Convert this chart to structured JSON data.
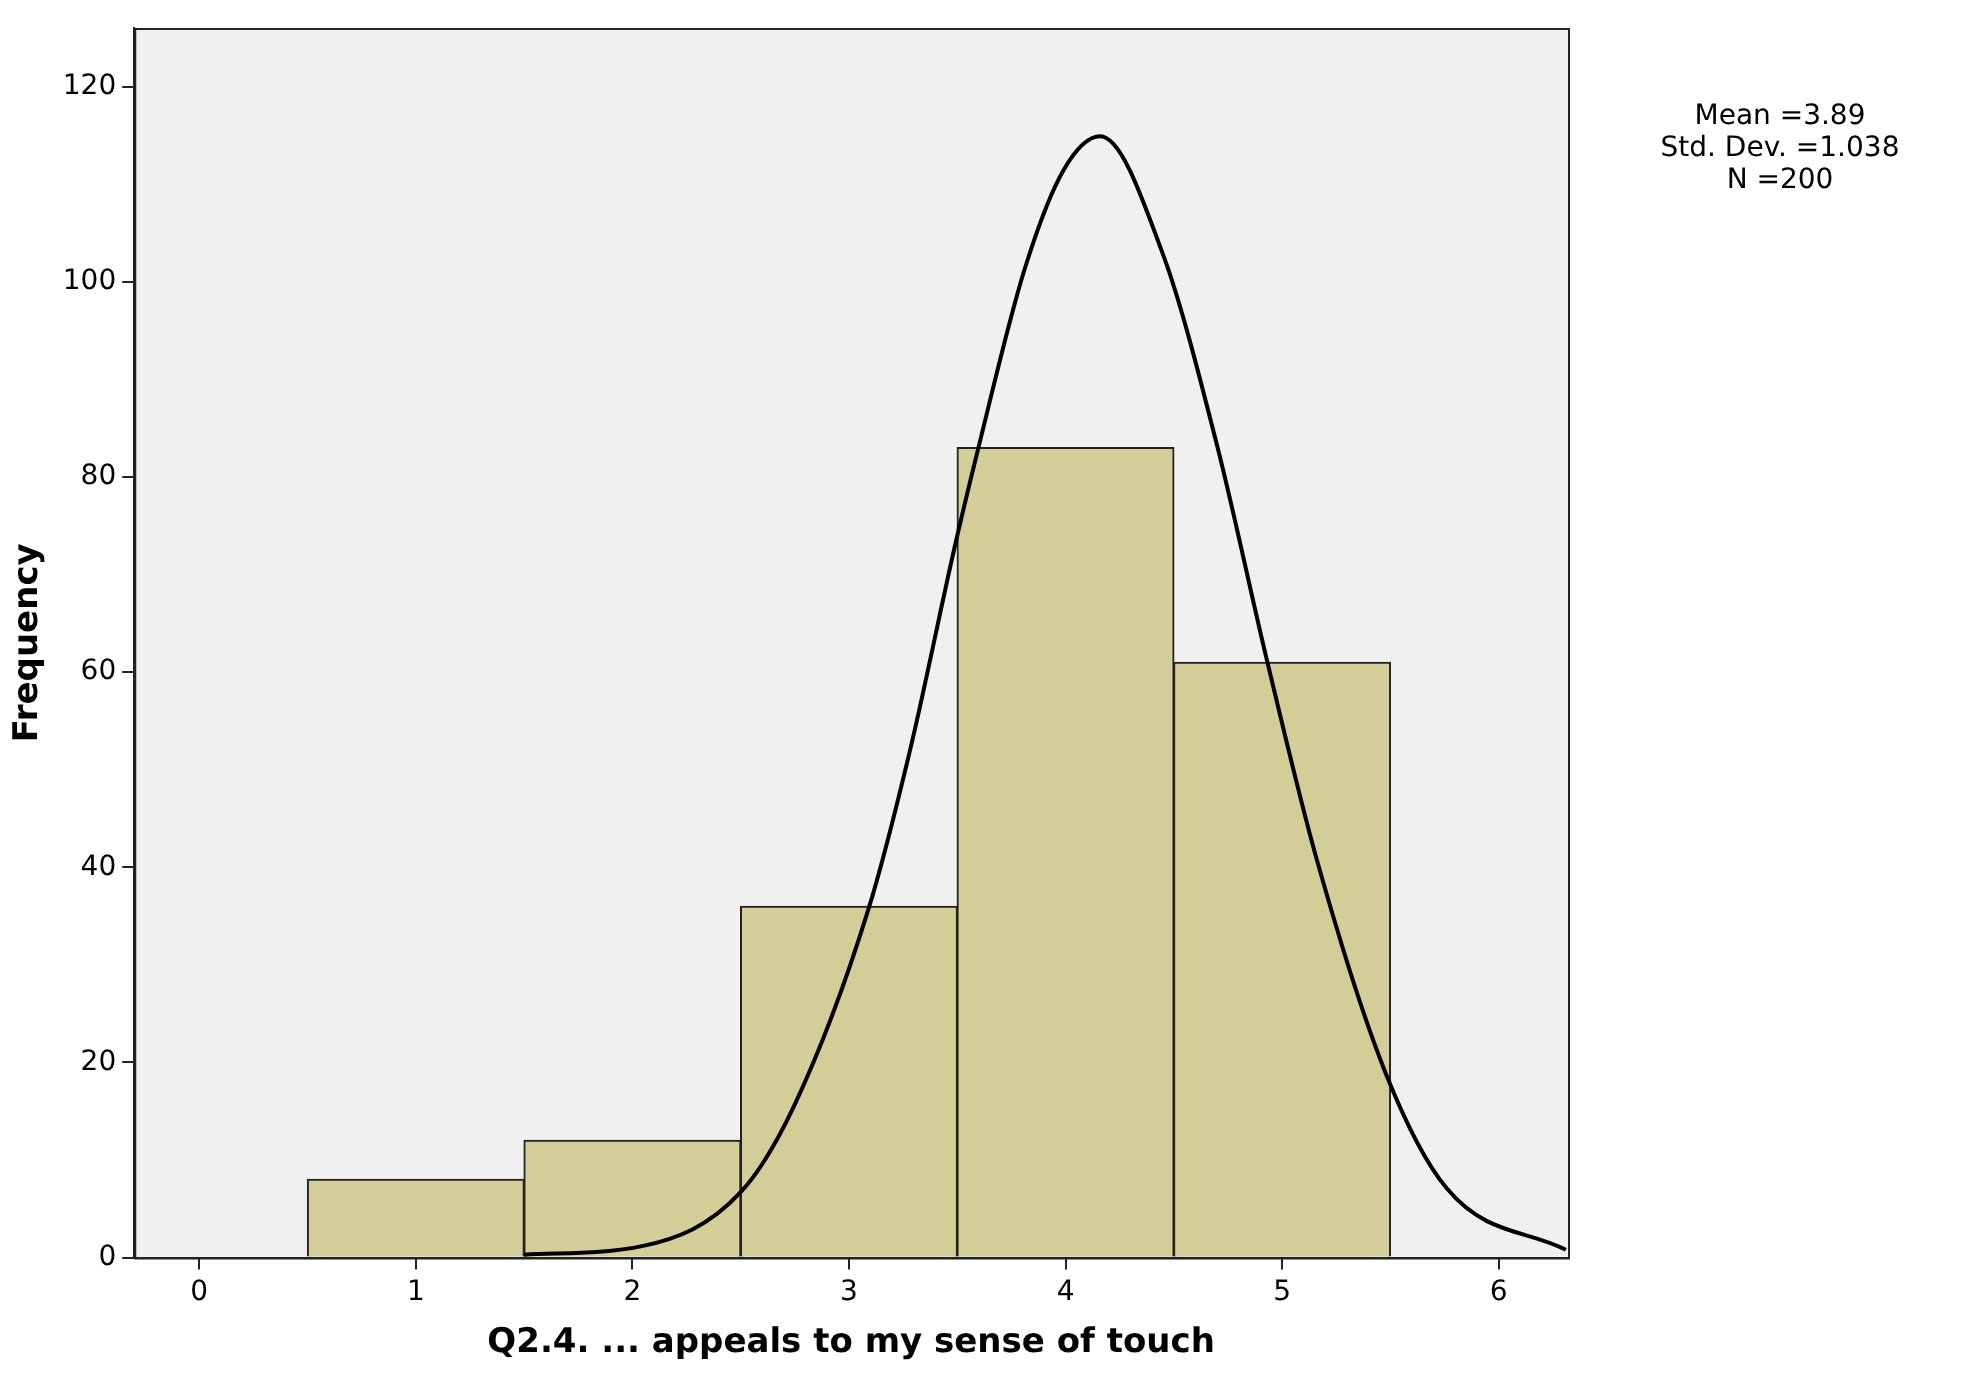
{
  "chart_data": {
    "type": "histogram",
    "xlabel": "Q2.4. ... appeals to my sense of touch",
    "ylabel": "Frequency",
    "bins": [
      0.5,
      1.5,
      2.5,
      3.5,
      4.5,
      5.5
    ],
    "values": [
      8,
      12,
      36,
      83,
      61
    ],
    "color": "#d3ce97",
    "series": [
      {
        "type": "line",
        "color": "#000000",
        "x": [
          1.5,
          2.05,
          2.5,
          2.75,
          3.09,
          3.28,
          3.49,
          3.6,
          3.81,
          3.99,
          4.16,
          4.45,
          4.7,
          4.93,
          5.16,
          5.48,
          5.76,
          6.31
        ],
        "values": [
          0.3,
          1.2,
          6.7,
          15.7,
          35.7,
          51.8,
          73,
          83.2,
          101.2,
          111.4,
          114.9,
          102.8,
          83.2,
          61.2,
          40.8,
          18.8,
          7.1,
          0.8
        ]
      }
    ],
    "xlim": [
      -0.3,
      6.32
    ],
    "xticks": [
      0,
      1,
      2,
      3,
      4,
      5,
      6
    ],
    "ylim": [
      0,
      126
    ],
    "yticks": [
      0,
      20,
      40,
      60,
      80,
      100,
      120
    ],
    "grid": false,
    "legend": false,
    "marker": "none",
    "line_style": "solid",
    "annotations": [
      "Mean =3.89",
      "Std. Dev. =1.038",
      "N =200"
    ]
  }
}
